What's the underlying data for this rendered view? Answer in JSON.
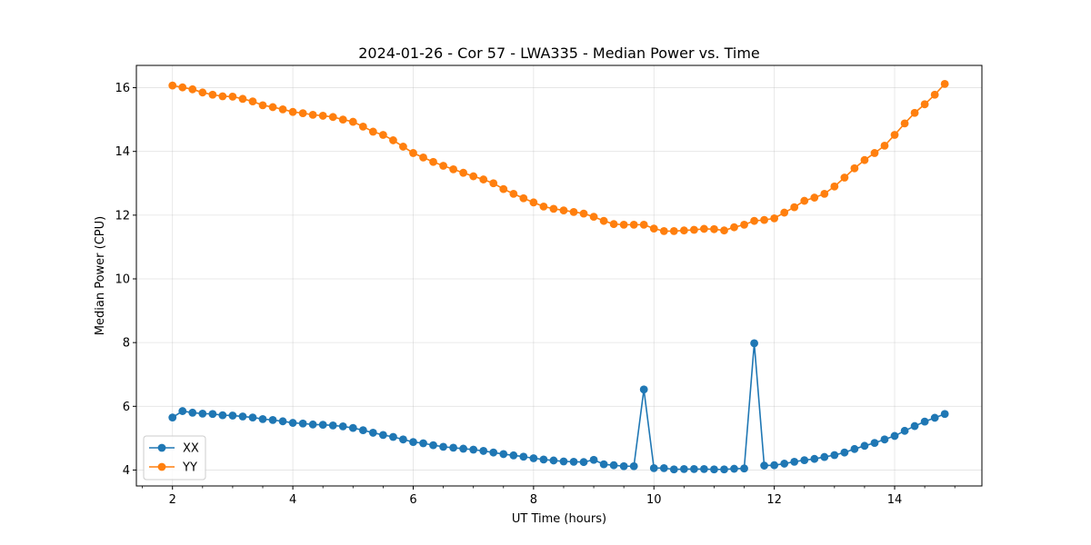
{
  "chart_data": {
    "type": "line",
    "title": "2024-01-26 - Cor 57 - LWA335 - Median Power vs. Time",
    "xlabel": "UT Time (hours)",
    "ylabel": "Median Power (CPU)",
    "xlim": [
      1.4,
      15.45
    ],
    "ylim": [
      3.5,
      16.7
    ],
    "xticks": [
      2,
      4,
      6,
      8,
      10,
      12,
      14
    ],
    "xtick_labels": [
      "2",
      "4",
      "6",
      "8",
      "10",
      "12",
      "14"
    ],
    "x_minor_step": 0.5,
    "yticks": [
      4,
      6,
      8,
      10,
      12,
      14,
      16
    ],
    "ytick_labels": [
      "4",
      "6",
      "8",
      "10",
      "12",
      "14",
      "16"
    ],
    "grid": true,
    "legend_position": "lower-left",
    "x": [
      2.0,
      2.167,
      2.333,
      2.5,
      2.667,
      2.833,
      3.0,
      3.167,
      3.333,
      3.5,
      3.667,
      3.833,
      4.0,
      4.167,
      4.333,
      4.5,
      4.667,
      4.833,
      5.0,
      5.167,
      5.333,
      5.5,
      5.667,
      5.833,
      6.0,
      6.167,
      6.333,
      6.5,
      6.667,
      6.833,
      7.0,
      7.167,
      7.333,
      7.5,
      7.667,
      7.833,
      8.0,
      8.167,
      8.333,
      8.5,
      8.667,
      8.833,
      9.0,
      9.167,
      9.333,
      9.5,
      9.667,
      9.833,
      10.0,
      10.167,
      10.333,
      10.5,
      10.667,
      10.833,
      11.0,
      11.167,
      11.333,
      11.5,
      11.667,
      11.833,
      12.0,
      12.167,
      12.333,
      12.5,
      12.667,
      12.833,
      13.0,
      13.167,
      13.333,
      13.5,
      13.667,
      13.833,
      14.0,
      14.167,
      14.333,
      14.5,
      14.667,
      14.833
    ],
    "series": [
      {
        "name": "XX",
        "color": "#1f77b4",
        "values": [
          5.65,
          5.85,
          5.8,
          5.77,
          5.76,
          5.72,
          5.71,
          5.68,
          5.65,
          5.6,
          5.57,
          5.53,
          5.48,
          5.46,
          5.43,
          5.42,
          5.4,
          5.37,
          5.32,
          5.25,
          5.17,
          5.1,
          5.04,
          4.96,
          4.88,
          4.84,
          4.78,
          4.73,
          4.7,
          4.67,
          4.64,
          4.6,
          4.55,
          4.5,
          4.46,
          4.42,
          4.37,
          4.33,
          4.3,
          4.27,
          4.26,
          4.25,
          4.32,
          4.18,
          4.15,
          4.12,
          4.12,
          6.53,
          4.06,
          4.06,
          4.02,
          4.03,
          4.03,
          4.03,
          4.02,
          4.02,
          4.04,
          4.05,
          7.98,
          4.14,
          4.15,
          4.2,
          4.26,
          4.31,
          4.35,
          4.41,
          4.47,
          4.55,
          4.66,
          4.76,
          4.85,
          4.96,
          5.07,
          5.23,
          5.38,
          5.52,
          5.64,
          5.76
        ]
      },
      {
        "name": "YY",
        "color": "#ff7f0e",
        "values": [
          16.07,
          16.01,
          15.95,
          15.85,
          15.78,
          15.73,
          15.72,
          15.65,
          15.57,
          15.45,
          15.39,
          15.32,
          15.24,
          15.2,
          15.15,
          15.12,
          15.08,
          15.0,
          14.93,
          14.78,
          14.62,
          14.52,
          14.35,
          14.15,
          13.95,
          13.81,
          13.67,
          13.55,
          13.44,
          13.33,
          13.22,
          13.12,
          13.0,
          12.82,
          12.67,
          12.53,
          12.4,
          12.27,
          12.2,
          12.15,
          12.1,
          12.05,
          11.95,
          11.82,
          11.72,
          11.7,
          11.7,
          11.7,
          11.58,
          11.5,
          11.5,
          11.52,
          11.54,
          11.57,
          11.56,
          11.52,
          11.62,
          11.7,
          11.82,
          11.85,
          11.9,
          12.08,
          12.25,
          12.45,
          12.55,
          12.67,
          12.9,
          13.18,
          13.47,
          13.73,
          13.95,
          14.18,
          14.52,
          14.88,
          15.21,
          15.48,
          15.78,
          16.12
        ]
      }
    ]
  }
}
